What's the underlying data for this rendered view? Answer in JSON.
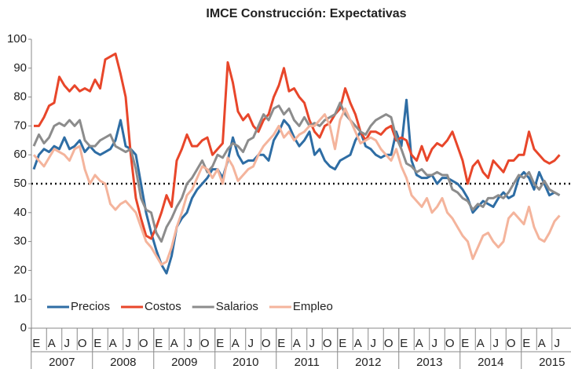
{
  "chart_data": {
    "type": "line",
    "title": "IMCE Construcción: Expectativas",
    "categories": [
      "E",
      null,
      null,
      "A",
      null,
      null,
      "J",
      null,
      null,
      "O",
      null,
      null,
      "E",
      null,
      null,
      "A",
      null,
      null,
      "J",
      null,
      null,
      "O",
      null,
      null,
      "E",
      null,
      null,
      "A",
      null,
      null,
      "J",
      null,
      null,
      "O",
      null,
      null,
      "E",
      null,
      null,
      "A",
      null,
      null,
      "J",
      null,
      null,
      "O",
      null,
      null,
      "E",
      null,
      null,
      "A",
      null,
      null,
      "J",
      null,
      null,
      "O",
      null,
      null,
      "E",
      null,
      null,
      "A",
      null,
      null,
      "J",
      null,
      null,
      "O",
      null,
      null,
      "E",
      null,
      null,
      "A",
      null,
      null,
      "J",
      null,
      null,
      "O",
      null,
      null,
      "E",
      null,
      null,
      "A",
      null,
      null,
      "J",
      null,
      null,
      "O",
      null,
      null,
      "E",
      null,
      null,
      "A",
      null,
      null,
      "J",
      null
    ],
    "year_labels": [
      "2007",
      "2008",
      "2009",
      "2010",
      "2011",
      "2012",
      "2013",
      "2014",
      "2015"
    ],
    "series": [
      {
        "name": "Precios",
        "color": "#2e6da4",
        "values": [
          55,
          60,
          62,
          61,
          63,
          62,
          66,
          62,
          63,
          65,
          61,
          63,
          61,
          60,
          61,
          62,
          65,
          72,
          63,
          62,
          60,
          50,
          40,
          33,
          27,
          22,
          19,
          25,
          35,
          38,
          40,
          45,
          48,
          50,
          52,
          55,
          55,
          52,
          58,
          66,
          60,
          57,
          58,
          58,
          60,
          60,
          58,
          65,
          68,
          72,
          70,
          66,
          63,
          65,
          68,
          60,
          62,
          58,
          56,
          55,
          58,
          59,
          60,
          65,
          68,
          63,
          62,
          60,
          59,
          60,
          60,
          68,
          63,
          79,
          58,
          53,
          52,
          52,
          53,
          50,
          52,
          52,
          51,
          50,
          48,
          45,
          40,
          42,
          44,
          43,
          42,
          45,
          47,
          45,
          46,
          52,
          54,
          52,
          48,
          54,
          50,
          46,
          47,
          46
        ]
      },
      {
        "name": "Costos",
        "color": "#e8462a",
        "values": [
          70,
          70,
          73,
          77,
          78,
          87,
          84,
          82,
          84,
          82,
          83,
          82,
          86,
          83,
          93,
          94,
          95,
          88,
          80,
          60,
          45,
          38,
          32,
          31,
          35,
          40,
          46,
          42,
          58,
          62,
          67,
          63,
          63,
          65,
          66,
          60,
          62,
          64,
          92,
          85,
          75,
          72,
          74,
          70,
          68,
          72,
          74,
          80,
          84,
          90,
          82,
          83,
          80,
          78,
          72,
          68,
          66,
          70,
          71,
          74,
          76,
          83,
          78,
          74,
          68,
          65,
          68,
          68,
          67,
          69,
          70,
          65,
          66,
          65,
          60,
          58,
          63,
          58,
          62,
          64,
          63,
          65,
          68,
          63,
          58,
          50,
          56,
          58,
          54,
          52,
          58,
          56,
          54,
          58,
          58,
          60,
          60,
          68,
          62,
          60,
          58,
          57,
          58,
          60
        ]
      },
      {
        "name": "Salarios",
        "color": "#8c8c8c",
        "values": [
          63,
          67,
          64,
          66,
          70,
          71,
          70,
          72,
          70,
          72,
          65,
          63,
          63,
          65,
          66,
          67,
          63,
          62,
          61,
          62,
          55,
          45,
          41,
          40,
          33,
          30,
          35,
          38,
          42,
          45,
          50,
          52,
          55,
          58,
          54,
          56,
          60,
          59,
          62,
          64,
          63,
          61,
          65,
          66,
          70,
          74,
          72,
          76,
          77,
          74,
          76,
          72,
          70,
          73,
          70,
          71,
          70,
          72,
          73,
          74,
          78,
          74,
          72,
          70,
          68,
          67,
          70,
          72,
          73,
          74,
          73,
          66,
          62,
          57,
          56,
          54,
          55,
          53,
          53,
          54,
          53,
          53,
          48,
          47,
          45,
          44,
          41,
          43,
          42,
          45,
          45,
          46,
          45,
          47,
          50,
          53,
          52,
          54,
          50,
          48,
          51,
          48,
          47,
          46
        ]
      },
      {
        "name": "Empleo",
        "color": "#f4b49c",
        "values": [
          60,
          58,
          56,
          59,
          62,
          61,
          60,
          58,
          62,
          63,
          55,
          50,
          53,
          51,
          50,
          43,
          41,
          43,
          44,
          42,
          40,
          35,
          30,
          28,
          25,
          22,
          23,
          28,
          35,
          40,
          46,
          48,
          52,
          56,
          55,
          52,
          55,
          50,
          59,
          56,
          51,
          53,
          55,
          56,
          60,
          63,
          65,
          67,
          70,
          66,
          68,
          65,
          67,
          68,
          70,
          70,
          72,
          74,
          70,
          62,
          72,
          76,
          72,
          68,
          64,
          65,
          66,
          65,
          62,
          60,
          58,
          62,
          56,
          52,
          46,
          44,
          42,
          45,
          40,
          42,
          45,
          40,
          38,
          35,
          32,
          30,
          24,
          28,
          32,
          33,
          30,
          28,
          30,
          38,
          40,
          38,
          36,
          42,
          35,
          31,
          30,
          33,
          37,
          39
        ]
      }
    ],
    "ylim": [
      0,
      100
    ],
    "yticks": [
      0,
      10,
      20,
      30,
      40,
      50,
      60,
      70,
      80,
      90,
      100
    ],
    "reference_line": 50,
    "legend": "lower left"
  }
}
